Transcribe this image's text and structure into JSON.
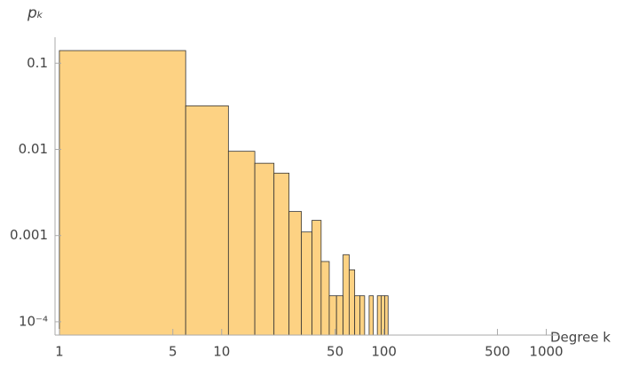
{
  "chart_data": {
    "type": "histogram",
    "x_label": "Degree k",
    "y_label": "pₖ",
    "bins": [
      1,
      6,
      11,
      16,
      21,
      26,
      31,
      36,
      41,
      46,
      51,
      56,
      61,
      66,
      71,
      76,
      81,
      86,
      91,
      96,
      101,
      106
    ],
    "values": [
      0.14,
      0.032,
      0.0095,
      0.0069,
      0.0053,
      0.0019,
      0.0011,
      0.0015,
      0.0005,
      0.0002,
      0.0002,
      0.0006,
      0.0004,
      0.0002,
      0.0002,
      0,
      0.0002,
      0,
      0.0002,
      0.0002,
      0.0002
    ],
    "color": "#fdd283",
    "edge_color": "#333333",
    "x_log": true,
    "y_log": true,
    "xlim": [
      0.94,
      1200
    ],
    "ylim": [
      7e-05,
      0.2
    ],
    "xticks": [
      1,
      5,
      10,
      50,
      100,
      500,
      1000
    ],
    "yticks": [
      0.1,
      0.01,
      0.001,
      {
        "value": 0.0001,
        "label": "10⁻⁴"
      }
    ]
  }
}
